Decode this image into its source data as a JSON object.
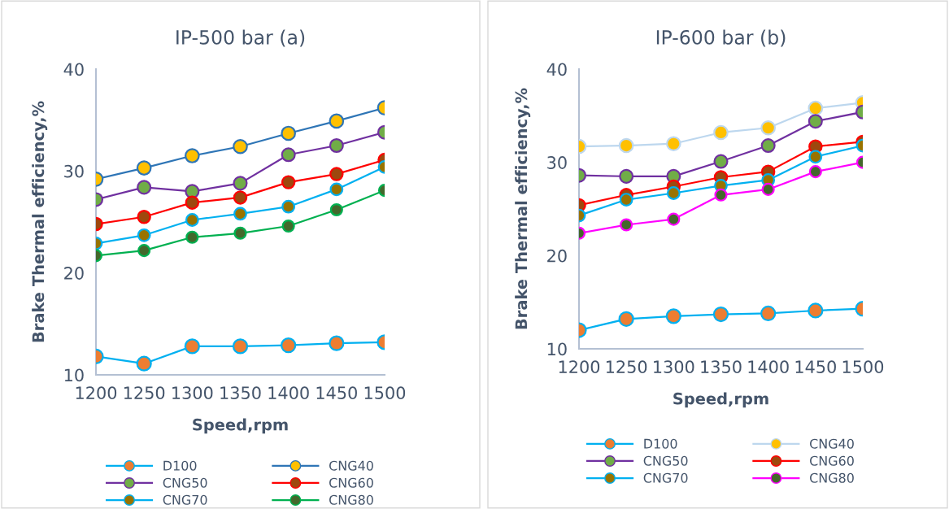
{
  "chart_data": [
    {
      "type": "line",
      "title": "IP-500 bar (a)",
      "xlabel": "Speed,rpm",
      "ylabel": "Brake Thermal efficiency,%",
      "categories": [
        "1200",
        "1250",
        "1300",
        "1350",
        "1400",
        "1450",
        "1500"
      ],
      "ylim": [
        10,
        40
      ],
      "yticks": [
        10,
        20,
        30,
        40
      ],
      "grid": false,
      "legend": "bottom",
      "marker": "circle",
      "line_style": "solid",
      "series": [
        {
          "name": "D100",
          "color": "#00b0f0",
          "colors": [
            "#ed7d31",
            "#ed7d31",
            "#ed7d31",
            "#ed7d31",
            "#ed7d31",
            "#ed7d31",
            "#ed7d31"
          ],
          "values": [
            11.8,
            11.1,
            12.8,
            12.8,
            12.9,
            13.1,
            13.2
          ]
        },
        {
          "name": "CNG40",
          "color": "#2e75b6",
          "colors": [
            "#ffc000",
            "#ffc000",
            "#ffc000",
            "#ffc000",
            "#ffc000",
            "#ffc000",
            "#ffc000"
          ],
          "values": [
            29.2,
            30.3,
            31.5,
            32.4,
            33.7,
            34.9,
            36.2
          ]
        },
        {
          "name": "CNG50",
          "color": "#7030a0",
          "colors": [
            "#70ad47",
            "#70ad47",
            "#70ad47",
            "#70ad47",
            "#70ad47",
            "#70ad47",
            "#70ad47"
          ],
          "values": [
            27.2,
            28.4,
            28.0,
            28.8,
            31.6,
            32.5,
            33.8
          ]
        },
        {
          "name": "CNG60",
          "color": "#ff0000",
          "colors": [
            "#9e480e",
            "#9e480e",
            "#9e480e",
            "#9e480e",
            "#9e480e",
            "#9e480e",
            "#9e480e"
          ],
          "values": [
            24.8,
            25.5,
            26.9,
            27.4,
            28.9,
            29.7,
            31.1
          ]
        },
        {
          "name": "CNG70",
          "color": "#00b0f0",
          "colors": [
            "#997300",
            "#997300",
            "#997300",
            "#997300",
            "#997300",
            "#997300",
            "#997300"
          ],
          "values": [
            22.9,
            23.7,
            25.2,
            25.8,
            26.5,
            28.2,
            30.4
          ]
        },
        {
          "name": "CNG80",
          "color": "#00b050",
          "colors": [
            "#43682b",
            "#43682b",
            "#43682b",
            "#43682b",
            "#43682b",
            "#43682b",
            "#43682b"
          ],
          "values": [
            21.7,
            22.2,
            23.5,
            23.9,
            24.6,
            26.2,
            28.1
          ]
        }
      ]
    },
    {
      "type": "line",
      "title": "IP-600 bar (b)",
      "xlabel": "Speed,rpm",
      "ylabel": "Brake Thermal efficiency,%",
      "categories": [
        "1200",
        "1250",
        "1300",
        "1350",
        "1400",
        "1450",
        "1500"
      ],
      "ylim": [
        10,
        40
      ],
      "yticks": [
        10,
        20,
        30,
        40
      ],
      "grid": false,
      "legend": "bottom",
      "marker": "circle",
      "line_style": "solid",
      "series": [
        {
          "name": "D100",
          "color": "#00b0f0",
          "colors": [
            "#ed7d31",
            "#ed7d31",
            "#ed7d31",
            "#ed7d31",
            "#ed7d31",
            "#ed7d31",
            "#ed7d31"
          ],
          "values": [
            12.0,
            13.2,
            13.5,
            13.7,
            13.8,
            14.1,
            14.3
          ]
        },
        {
          "name": "CNG40",
          "color": "#bdd7ee",
          "colors": [
            "#ffc000",
            "#ffc000",
            "#ffc000",
            "#ffc000",
            "#ffc000",
            "#ffc000",
            "#ffc000"
          ],
          "values": [
            31.7,
            31.8,
            32.0,
            33.2,
            33.7,
            35.8,
            36.4
          ]
        },
        {
          "name": "CNG50",
          "color": "#7030a0",
          "colors": [
            "#70ad47",
            "#70ad47",
            "#70ad47",
            "#70ad47",
            "#70ad47",
            "#70ad47",
            "#70ad47"
          ],
          "values": [
            28.6,
            28.5,
            28.5,
            30.1,
            31.8,
            34.4,
            35.4
          ]
        },
        {
          "name": "CNG60",
          "color": "#ff0000",
          "colors": [
            "#9e480e",
            "#9e480e",
            "#9e480e",
            "#9e480e",
            "#9e480e",
            "#9e480e",
            "#9e480e"
          ],
          "values": [
            25.4,
            26.5,
            27.4,
            28.4,
            29.0,
            31.7,
            32.2
          ]
        },
        {
          "name": "CNG70",
          "color": "#00b0f0",
          "colors": [
            "#997300",
            "#997300",
            "#997300",
            "#997300",
            "#997300",
            "#997300",
            "#997300"
          ],
          "values": [
            24.3,
            26.0,
            26.7,
            27.5,
            28.1,
            30.6,
            31.8
          ]
        },
        {
          "name": "CNG80",
          "color": "#ff00ff",
          "colors": [
            "#43682b",
            "#43682b",
            "#43682b",
            "#43682b",
            "#43682b",
            "#43682b",
            "#43682b"
          ],
          "values": [
            22.4,
            23.3,
            23.9,
            26.5,
            27.1,
            29.0,
            30.0
          ]
        }
      ]
    }
  ]
}
